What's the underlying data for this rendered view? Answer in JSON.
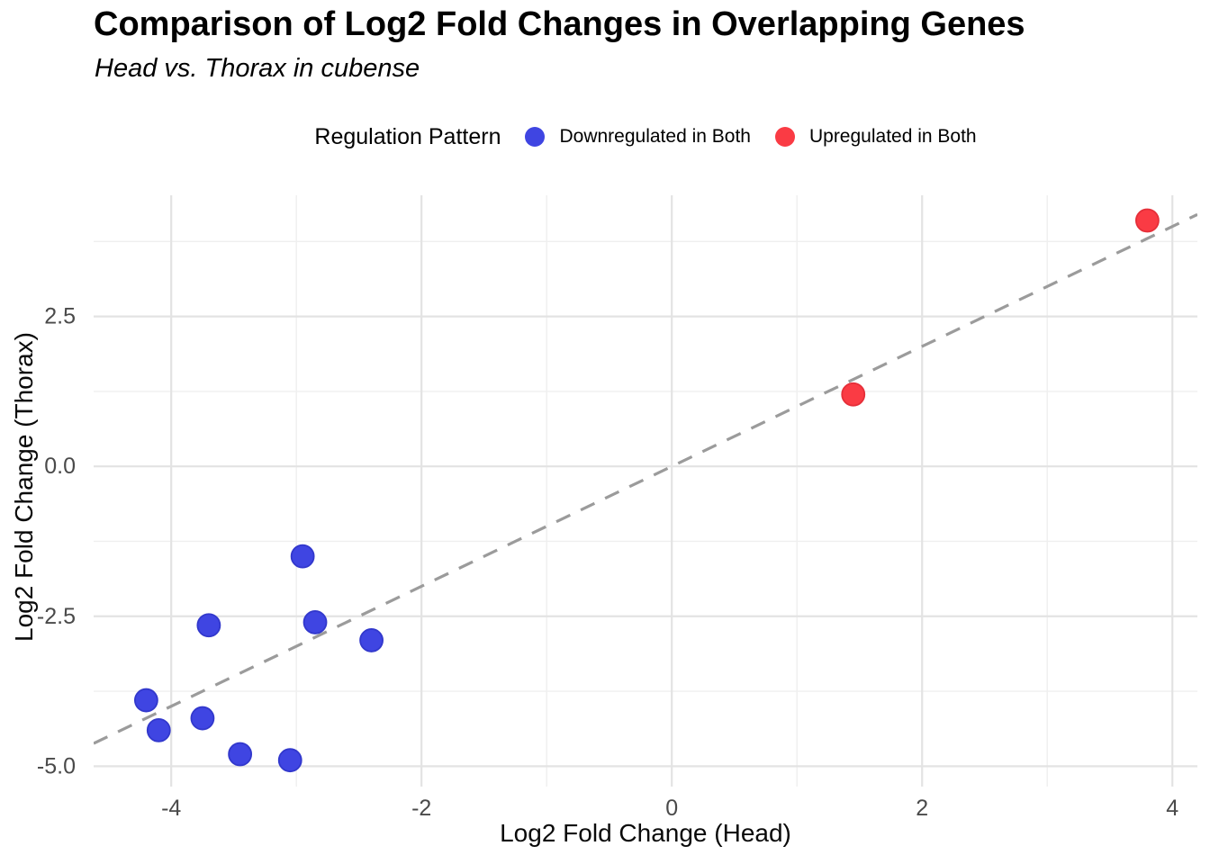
{
  "chart_data": {
    "type": "scatter",
    "title": "Comparison of Log2 Fold Changes in Overlapping Genes",
    "subtitle": "Head vs. Thorax in cubense",
    "xlabel": "Log2 Fold Change (Head)",
    "ylabel": "Log2 Fold Change (Thorax)",
    "legend_title": "Regulation Pattern",
    "legend_position": "top",
    "xlim": [
      -4.62,
      4.2
    ],
    "ylim": [
      -5.34,
      4.52
    ],
    "x_ticks": [
      -4,
      -2,
      0,
      2,
      4
    ],
    "x_tick_labels": [
      "-4",
      "-2",
      "0",
      "2",
      "4"
    ],
    "x_minor_ticks": [
      -3,
      -1,
      1,
      3
    ],
    "y_ticks": [
      2.5,
      0,
      -2.5,
      -5
    ],
    "y_tick_labels": [
      "2.5",
      "0.0",
      "-2.5",
      "-5.0"
    ],
    "y_minor_ticks": [
      3.75,
      1.25,
      -1.25,
      -3.75
    ],
    "grid": {
      "show": true,
      "major_color": "#e3e3e3",
      "minor_color": "#efefef",
      "background": "#ffffff"
    },
    "reference_line": {
      "kind": "identity",
      "slope": 1,
      "intercept": 0,
      "style": "dashed",
      "color": "#9b9b9b"
    },
    "series": [
      {
        "name": "Downregulated in Both",
        "color": "#3f45e2",
        "stroke": "#3238cc",
        "points": [
          [
            -2.95,
            -1.5
          ],
          [
            -3.7,
            -2.65
          ],
          [
            -2.85,
            -2.6
          ],
          [
            -2.4,
            -2.9
          ],
          [
            -4.2,
            -3.9
          ],
          [
            -4.1,
            -4.4
          ],
          [
            -3.75,
            -4.2
          ],
          [
            -3.45,
            -4.8
          ],
          [
            -3.05,
            -4.9
          ]
        ]
      },
      {
        "name": "Upregulated in Both",
        "color": "#fa3b44",
        "stroke": "#e52f39",
        "points": [
          [
            1.45,
            1.2
          ],
          [
            3.8,
            4.1
          ]
        ]
      }
    ]
  }
}
